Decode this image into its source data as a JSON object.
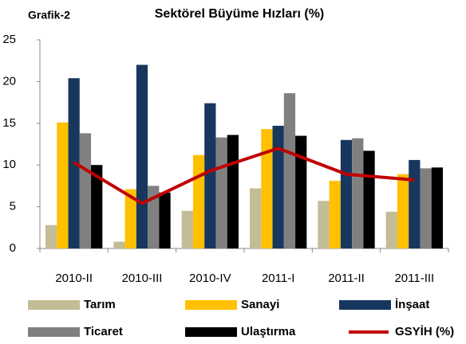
{
  "chart_data": {
    "type": "bar",
    "label": "Grafik-2",
    "title": "Sektörel Büyüme Hızları (%)",
    "categories": [
      "2010-II",
      "2010-III",
      "2010-IV",
      "2011-I",
      "2011-II",
      "2011-III"
    ],
    "ylim": [
      0,
      25
    ],
    "yticks": [
      0,
      5,
      10,
      15,
      20,
      25
    ],
    "series": [
      {
        "name": "Tarım",
        "color": "#c4bc96",
        "values": [
          2.8,
          0.8,
          4.5,
          7.2,
          5.7,
          4.4
        ]
      },
      {
        "name": "Sanayi",
        "color": "#ffc000",
        "values": [
          15.1,
          7.1,
          11.2,
          14.3,
          8.1,
          8.9
        ]
      },
      {
        "name": "İnşaat",
        "color": "#17375e",
        "values": [
          20.4,
          22.0,
          17.4,
          14.7,
          13.0,
          10.6
        ]
      },
      {
        "name": "Ticaret",
        "color": "#808080",
        "values": [
          13.8,
          7.5,
          13.3,
          18.6,
          13.2,
          9.6
        ]
      },
      {
        "name": "Ulaştırma",
        "color": "#000000",
        "values": [
          10.0,
          6.7,
          13.6,
          13.5,
          11.7,
          9.7
        ]
      },
      {
        "name": "GSYİH (%)",
        "color": "#c00000",
        "type": "line",
        "values": [
          10.3,
          5.4,
          9.3,
          12.0,
          8.9,
          8.2
        ]
      }
    ]
  }
}
